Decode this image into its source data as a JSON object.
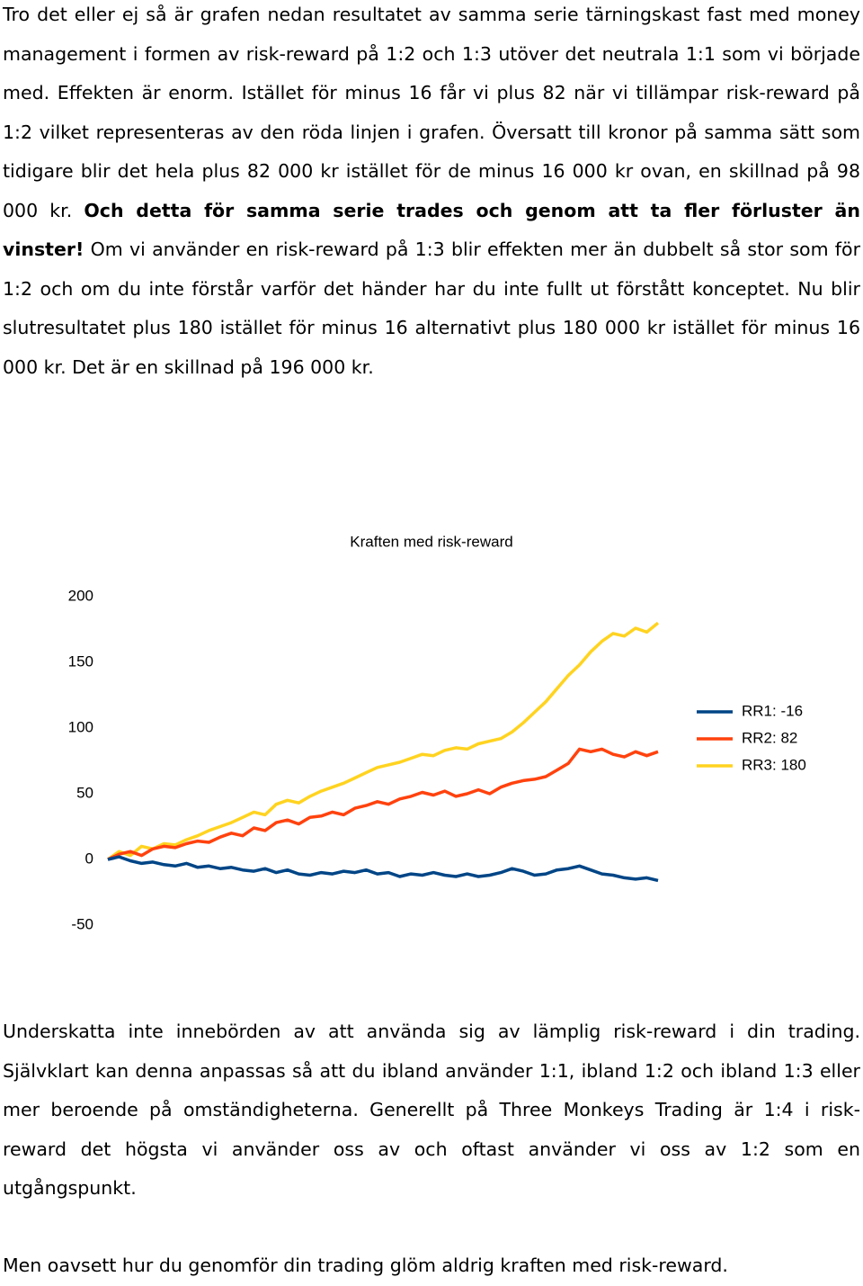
{
  "paragraphs": [
    {
      "runs": [
        {
          "text": "Tro det eller ej så är grafen nedan resultatet av samma serie tärningskast fast med money management i formen av risk-reward på 1:2 och 1:3 utöver det neutrala 1:1 som vi började med. Effekten är enorm. Istället för minus 16 får vi plus 82 när vi tillämpar risk-reward på 1:2 vilket representeras av den röda linjen i grafen. Översatt till kronor på samma sätt som tidigare blir det hela plus 82 000 kr istället för de minus 16 000 kr ovan, en skillnad på 98 000 kr. ",
          "bold": false
        },
        {
          "text": "Och detta för samma serie trades och genom att ta fler förluster än vinster!",
          "bold": true
        },
        {
          "text": " Om vi använder en risk-reward på 1:3 blir effekten mer än dubbelt så stor som för 1:2 och om du inte förstår varför det händer har du inte fullt ut förstått konceptet. Nu blir slutresultatet plus 180 istället för minus 16 alternativt plus 180 000 kr istället för minus 16 000 kr. Det är en skillnad på 196 000 kr.",
          "bold": false
        }
      ]
    },
    {
      "runs": [
        {
          "text": "Underskatta inte innebörden av att använda sig av lämplig risk-reward i din trading. Självklart kan denna anpassas så att du ibland använder 1:1, ibland 1:2 och ibland 1:3 eller mer beroende på omständigheterna. Generellt på Three Monkeys Trading är 1:4 i risk-reward det högsta vi använder oss av och oftast använder vi oss av 1:2 som en utgångspunkt.",
          "bold": false
        }
      ]
    },
    {
      "runs": [
        {
          "text": "Men oavsett hur du genomför din trading glöm aldrig kraften med risk-reward.",
          "bold": false
        }
      ]
    }
  ],
  "chart_data": {
    "type": "line",
    "title": "Kraften med risk-reward",
    "ylim": [
      -50,
      200
    ],
    "yticks": [
      -50,
      0,
      50,
      100,
      150,
      200
    ],
    "grid": false,
    "legend": "right",
    "series": [
      {
        "name": "RR1: -16",
        "color": "#004586",
        "values": [
          0,
          2,
          -1,
          -3,
          -2,
          -4,
          -5,
          -3,
          -6,
          -5,
          -7,
          -6,
          -8,
          -9,
          -7,
          -10,
          -8,
          -11,
          -12,
          -10,
          -11,
          -9,
          -10,
          -8,
          -11,
          -10,
          -13,
          -11,
          -12,
          -10,
          -12,
          -13,
          -11,
          -13,
          -12,
          -10,
          -7,
          -9,
          -12,
          -11,
          -8,
          -7,
          -5,
          -8,
          -11,
          -12,
          -14,
          -15,
          -14,
          -16
        ]
      },
      {
        "name": "RR2: 82",
        "color": "#ff420e",
        "values": [
          0,
          4,
          6,
          3,
          8,
          10,
          9,
          12,
          14,
          13,
          17,
          20,
          18,
          24,
          22,
          28,
          30,
          27,
          32,
          33,
          36,
          34,
          39,
          41,
          44,
          42,
          46,
          48,
          51,
          49,
          52,
          48,
          50,
          53,
          50,
          55,
          58,
          60,
          61,
          63,
          68,
          73,
          84,
          82,
          84,
          80,
          78,
          82,
          79,
          82
        ]
      },
      {
        "name": "RR3: 180",
        "color": "#ffd320",
        "values": [
          0,
          6,
          3,
          10,
          8,
          12,
          11,
          15,
          18,
          22,
          25,
          28,
          32,
          36,
          34,
          42,
          45,
          43,
          48,
          52,
          55,
          58,
          62,
          66,
          70,
          72,
          74,
          77,
          80,
          79,
          83,
          85,
          84,
          88,
          90,
          92,
          97,
          104,
          112,
          120,
          130,
          140,
          148,
          158,
          166,
          172,
          170,
          176,
          173,
          180
        ]
      }
    ]
  }
}
